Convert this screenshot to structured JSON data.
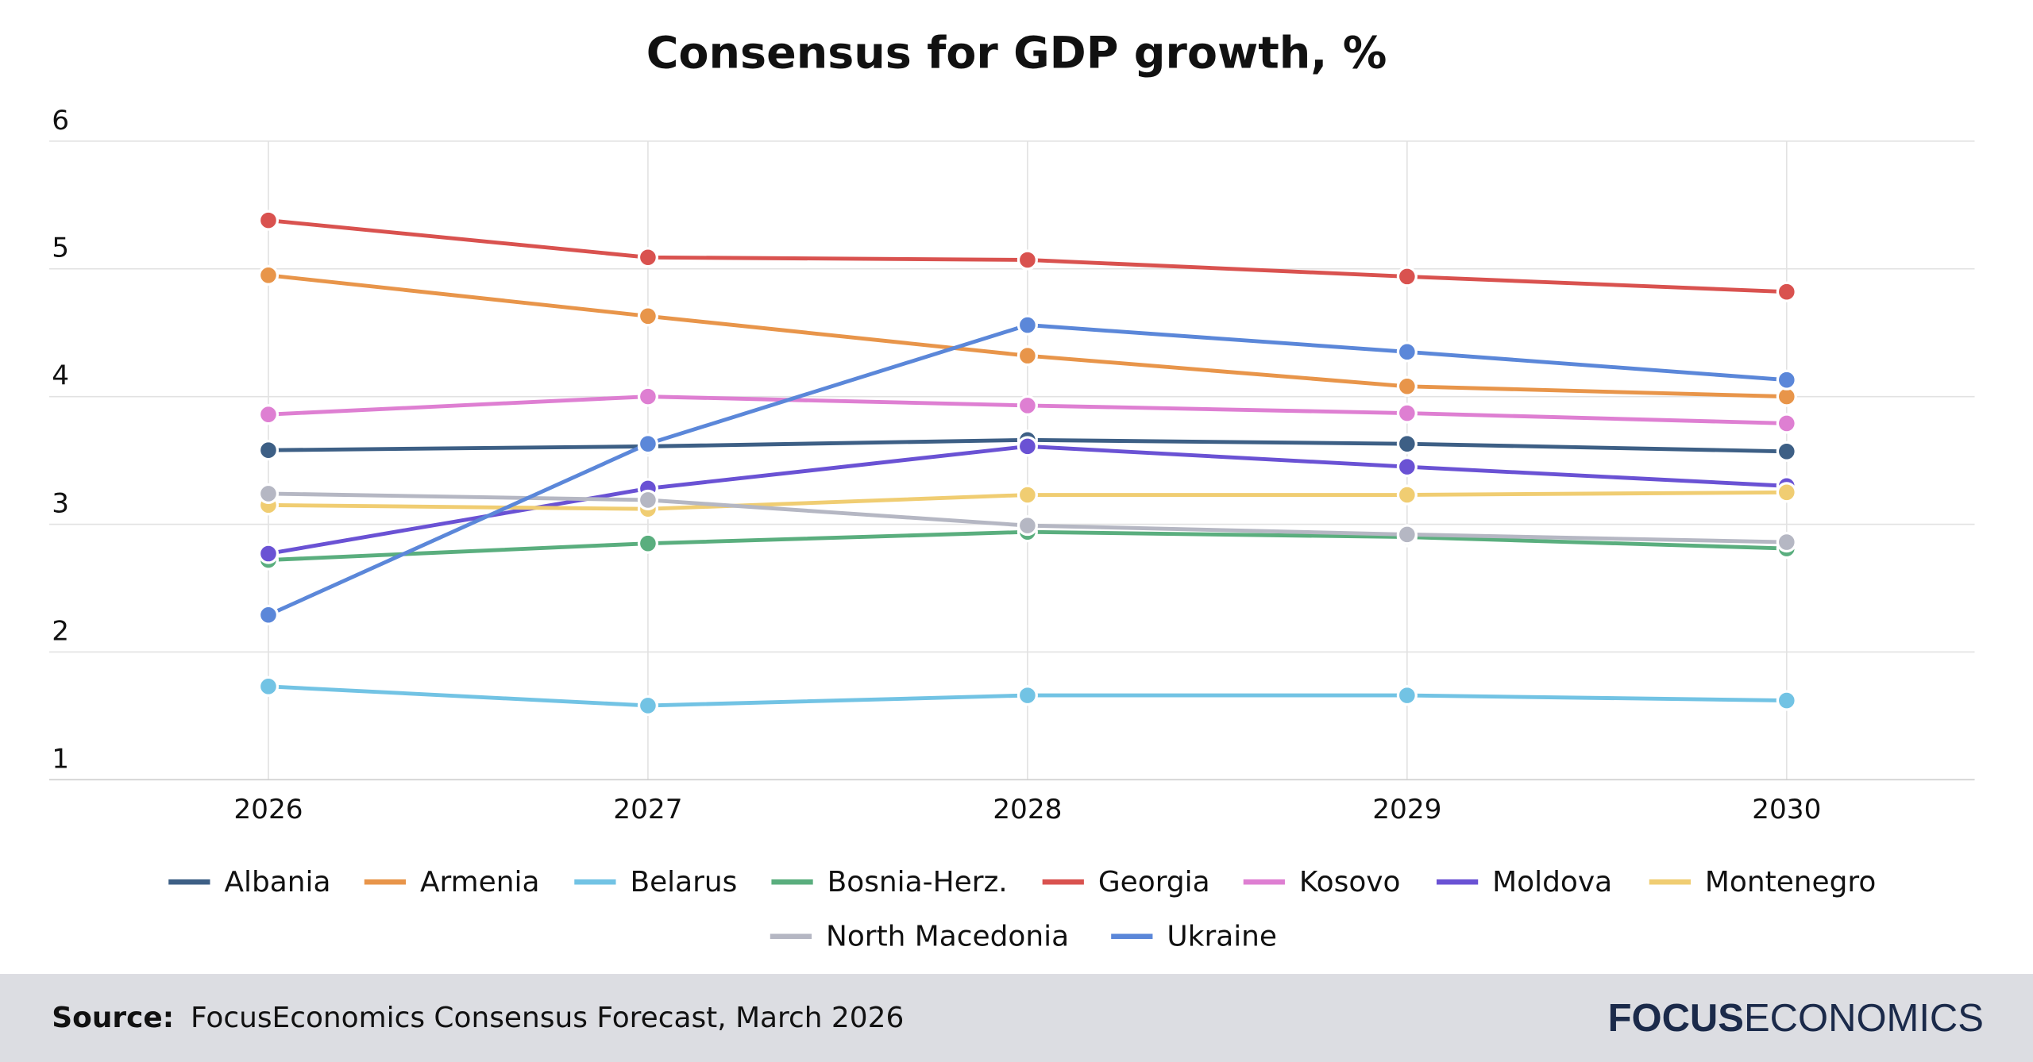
{
  "chart_data": {
    "type": "line",
    "title": "Consensus for GDP growth, %",
    "categories": [
      "2026",
      "2027",
      "2028",
      "2029",
      "2030"
    ],
    "series": [
      {
        "name": "Albania",
        "color": "#3d5f85",
        "values": [
          3.58,
          3.61,
          3.66,
          3.63,
          3.57
        ]
      },
      {
        "name": "Armenia",
        "color": "#e8954a",
        "values": [
          4.95,
          4.63,
          4.32,
          4.08,
          4.0
        ]
      },
      {
        "name": "Belarus",
        "color": "#72c3e4",
        "values": [
          1.73,
          1.58,
          1.66,
          1.66,
          1.62
        ]
      },
      {
        "name": "Bosnia-Herz.",
        "color": "#5aae7e",
        "values": [
          2.72,
          2.85,
          2.94,
          2.9,
          2.81
        ]
      },
      {
        "name": "Georgia",
        "color": "#d9524f",
        "values": [
          5.38,
          5.09,
          5.07,
          4.94,
          4.82
        ]
      },
      {
        "name": "Kosovo",
        "color": "#de7fd2",
        "values": [
          3.86,
          4.0,
          3.93,
          3.87,
          3.79
        ]
      },
      {
        "name": "Moldova",
        "color": "#6a52d4",
        "values": [
          2.77,
          3.28,
          3.61,
          3.45,
          3.3
        ]
      },
      {
        "name": "Montenegro",
        "color": "#f0cd72",
        "values": [
          3.15,
          3.12,
          3.23,
          3.23,
          3.25
        ]
      },
      {
        "name": "North Macedonia",
        "color": "#b5b7c3",
        "values": [
          3.24,
          3.19,
          2.99,
          2.92,
          2.86
        ]
      },
      {
        "name": "Ukraine",
        "color": "#5b87d9",
        "values": [
          2.29,
          3.63,
          4.56,
          4.35,
          4.13
        ]
      }
    ],
    "ylim": [
      1,
      6
    ],
    "yticks": [
      1,
      2,
      3,
      4,
      5,
      6
    ],
    "grid": true,
    "legend": "bottom"
  },
  "footer": {
    "source_label": "Source:",
    "source": "FocusEconomics Consensus Forecast, March 2026",
    "logo_bold": "FOCUS",
    "logo_light": "ECONOMICS"
  }
}
